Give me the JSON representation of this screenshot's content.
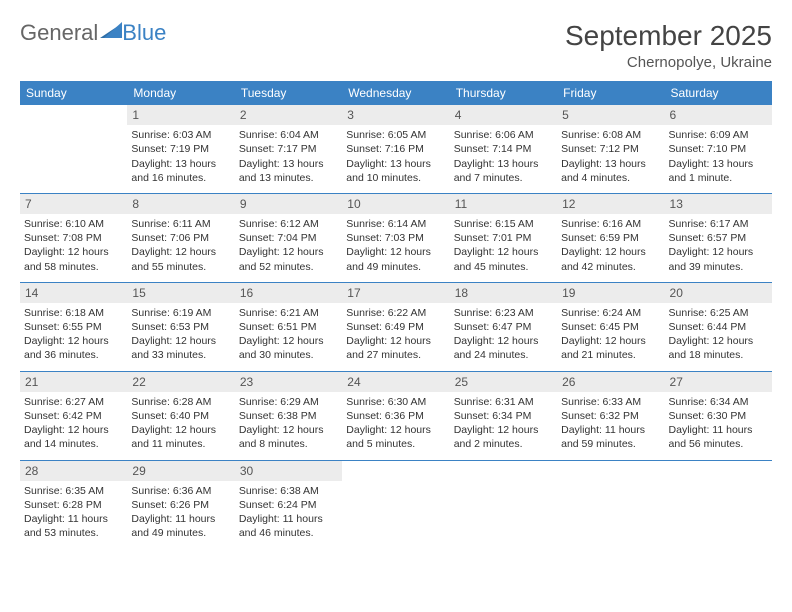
{
  "brand": {
    "part1": "General",
    "part2": "Blue"
  },
  "title": "September 2025",
  "location": "Chernopolye, Ukraine",
  "colors": {
    "header_bg": "#3b82c4",
    "header_text": "#ffffff",
    "daynum_bg": "#ececec",
    "rule": "#3b82c4",
    "text": "#333333",
    "page_bg": "#ffffff"
  },
  "weekdays": [
    "Sunday",
    "Monday",
    "Tuesday",
    "Wednesday",
    "Thursday",
    "Friday",
    "Saturday"
  ],
  "month": {
    "year": 2025,
    "month": 9,
    "days_in_month": 30,
    "first_weekday": 1
  },
  "days": {
    "1": {
      "sunrise": "6:03 AM",
      "sunset": "7:19 PM",
      "daylight": "13 hours and 16 minutes."
    },
    "2": {
      "sunrise": "6:04 AM",
      "sunset": "7:17 PM",
      "daylight": "13 hours and 13 minutes."
    },
    "3": {
      "sunrise": "6:05 AM",
      "sunset": "7:16 PM",
      "daylight": "13 hours and 10 minutes."
    },
    "4": {
      "sunrise": "6:06 AM",
      "sunset": "7:14 PM",
      "daylight": "13 hours and 7 minutes."
    },
    "5": {
      "sunrise": "6:08 AM",
      "sunset": "7:12 PM",
      "daylight": "13 hours and 4 minutes."
    },
    "6": {
      "sunrise": "6:09 AM",
      "sunset": "7:10 PM",
      "daylight": "13 hours and 1 minute."
    },
    "7": {
      "sunrise": "6:10 AM",
      "sunset": "7:08 PM",
      "daylight": "12 hours and 58 minutes."
    },
    "8": {
      "sunrise": "6:11 AM",
      "sunset": "7:06 PM",
      "daylight": "12 hours and 55 minutes."
    },
    "9": {
      "sunrise": "6:12 AM",
      "sunset": "7:04 PM",
      "daylight": "12 hours and 52 minutes."
    },
    "10": {
      "sunrise": "6:14 AM",
      "sunset": "7:03 PM",
      "daylight": "12 hours and 49 minutes."
    },
    "11": {
      "sunrise": "6:15 AM",
      "sunset": "7:01 PM",
      "daylight": "12 hours and 45 minutes."
    },
    "12": {
      "sunrise": "6:16 AM",
      "sunset": "6:59 PM",
      "daylight": "12 hours and 42 minutes."
    },
    "13": {
      "sunrise": "6:17 AM",
      "sunset": "6:57 PM",
      "daylight": "12 hours and 39 minutes."
    },
    "14": {
      "sunrise": "6:18 AM",
      "sunset": "6:55 PM",
      "daylight": "12 hours and 36 minutes."
    },
    "15": {
      "sunrise": "6:19 AM",
      "sunset": "6:53 PM",
      "daylight": "12 hours and 33 minutes."
    },
    "16": {
      "sunrise": "6:21 AM",
      "sunset": "6:51 PM",
      "daylight": "12 hours and 30 minutes."
    },
    "17": {
      "sunrise": "6:22 AM",
      "sunset": "6:49 PM",
      "daylight": "12 hours and 27 minutes."
    },
    "18": {
      "sunrise": "6:23 AM",
      "sunset": "6:47 PM",
      "daylight": "12 hours and 24 minutes."
    },
    "19": {
      "sunrise": "6:24 AM",
      "sunset": "6:45 PM",
      "daylight": "12 hours and 21 minutes."
    },
    "20": {
      "sunrise": "6:25 AM",
      "sunset": "6:44 PM",
      "daylight": "12 hours and 18 minutes."
    },
    "21": {
      "sunrise": "6:27 AM",
      "sunset": "6:42 PM",
      "daylight": "12 hours and 14 minutes."
    },
    "22": {
      "sunrise": "6:28 AM",
      "sunset": "6:40 PM",
      "daylight": "12 hours and 11 minutes."
    },
    "23": {
      "sunrise": "6:29 AM",
      "sunset": "6:38 PM",
      "daylight": "12 hours and 8 minutes."
    },
    "24": {
      "sunrise": "6:30 AM",
      "sunset": "6:36 PM",
      "daylight": "12 hours and 5 minutes."
    },
    "25": {
      "sunrise": "6:31 AM",
      "sunset": "6:34 PM",
      "daylight": "12 hours and 2 minutes."
    },
    "26": {
      "sunrise": "6:33 AM",
      "sunset": "6:32 PM",
      "daylight": "11 hours and 59 minutes."
    },
    "27": {
      "sunrise": "6:34 AM",
      "sunset": "6:30 PM",
      "daylight": "11 hours and 56 minutes."
    },
    "28": {
      "sunrise": "6:35 AM",
      "sunset": "6:28 PM",
      "daylight": "11 hours and 53 minutes."
    },
    "29": {
      "sunrise": "6:36 AM",
      "sunset": "6:26 PM",
      "daylight": "11 hours and 49 minutes."
    },
    "30": {
      "sunrise": "6:38 AM",
      "sunset": "6:24 PM",
      "daylight": "11 hours and 46 minutes."
    }
  },
  "labels": {
    "sunrise": "Sunrise: ",
    "sunset": "Sunset: ",
    "daylight": "Daylight: "
  }
}
